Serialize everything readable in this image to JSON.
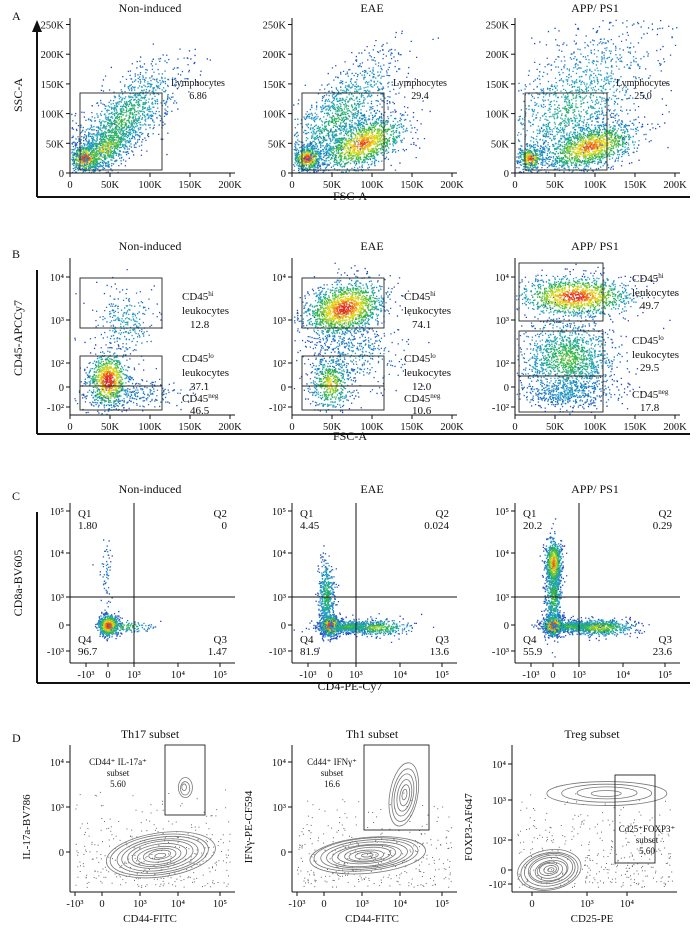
{
  "figure": {
    "panel_letters": [
      "A",
      "B",
      "C",
      "D"
    ],
    "conditions": [
      "Non-induced",
      "EAE",
      "APP/ PS1"
    ]
  },
  "colors": {
    "density_low": "#1f3fb0",
    "density_mid": "#22b14c",
    "density_high": "#f2e600",
    "density_peak": "#e8281e",
    "contour": "#777777",
    "gate": "#222222"
  },
  "chart_data": [
    {
      "panel": "A",
      "type": "scatter",
      "style": "density",
      "xlabel": "FSC-A",
      "ylabel": "SSC-A",
      "xticks": [
        "0",
        "50K",
        "100K",
        "150K",
        "200K"
      ],
      "yticks": [
        "0",
        "50K",
        "100K",
        "150K",
        "200K",
        "250K"
      ],
      "xlim": [
        0,
        230000
      ],
      "ylim": [
        0,
        262000
      ],
      "plots": [
        {
          "title": "Non-induced",
          "gates": [
            {
              "name": "Lymphocytes",
              "value": "6.86"
            }
          ]
        },
        {
          "title": "EAE",
          "gates": [
            {
              "name": "Lymphocytes",
              "value": "29.4"
            }
          ]
        },
        {
          "title": "APP/ PS1",
          "gates": [
            {
              "name": "Lymphocytes",
              "value": "25.0"
            }
          ]
        }
      ]
    },
    {
      "panel": "B",
      "type": "scatter",
      "style": "density",
      "xlabel": "FSC-A",
      "ylabel": "CD45-APCCy7",
      "xticks": [
        "0",
        "50K",
        "100K",
        "150K",
        "200K"
      ],
      "yticks": [
        "-10²",
        "0",
        "10²",
        "10³",
        "10⁴"
      ],
      "plots": [
        {
          "title": "Non-induced",
          "gates": [
            {
              "name": "CD45hi leukocytes",
              "value": "12.8"
            },
            {
              "name": "CD45lo leukocytes",
              "value": "37.1"
            },
            {
              "name": "CD45neg",
              "value": "46.5"
            }
          ]
        },
        {
          "title": "EAE",
          "gates": [
            {
              "name": "CD45hi leukocytes",
              "value": "74.1"
            },
            {
              "name": "CD45lo leukocytes",
              "value": "12.0"
            },
            {
              "name": "CD45neg",
              "value": "10.6"
            }
          ]
        },
        {
          "title": "APP/ PS1",
          "gates": [
            {
              "name": "CD45hi leukocytes",
              "value": "49.7"
            },
            {
              "name": "CD45lo leukocytes",
              "value": "29.5"
            },
            {
              "name": "CD45neg",
              "value": "17.8"
            }
          ]
        }
      ],
      "label_parts": {
        "base": "CD45",
        "hi": "hi",
        "lo": "lo",
        "neg": "neg",
        "word": "leukocytes"
      }
    },
    {
      "panel": "C",
      "type": "scatter",
      "style": "density-quadrant",
      "xlabel": "CD4-PE-Cy7",
      "ylabel": "CD8a-BV605",
      "xticks": [
        "-10³",
        "0",
        "10³",
        "10⁴",
        "10⁵"
      ],
      "yticks": [
        "-10³",
        "0",
        "10³",
        "10⁴",
        "10⁵"
      ],
      "quadrant_names": [
        "Q1",
        "Q2",
        "Q3",
        "Q4"
      ],
      "plots": [
        {
          "title": "Non-induced",
          "quadrants": {
            "Q1": "1.80",
            "Q2": "0",
            "Q3": "1.47",
            "Q4": "96.7"
          }
        },
        {
          "title": "EAE",
          "quadrants": {
            "Q1": "4.45",
            "Q2": "0.024",
            "Q3": "13.6",
            "Q4": "81.9"
          }
        },
        {
          "title": "APP/ PS1",
          "quadrants": {
            "Q1": "20.2",
            "Q2": "0.29",
            "Q3": "23.6",
            "Q4": "55.9"
          }
        }
      ]
    },
    {
      "panel": "D",
      "type": "scatter",
      "style": "contour",
      "plots": [
        {
          "title": "Th17 subset",
          "xlabel": "CD44-FITC",
          "ylabel": "IL-17a-BV786",
          "xticks": [
            "-10³",
            "0",
            "10³",
            "10⁴",
            "10⁵"
          ],
          "yticks": [
            "0",
            "10³",
            "10⁴"
          ],
          "gate": {
            "line1": "CD44⁺ IL-17a⁺",
            "line2": "subset",
            "value": "5.60"
          }
        },
        {
          "title": "Th1 subset",
          "xlabel": "CD44-FITC",
          "ylabel": "IFNγ-PE-CF594",
          "xticks": [
            "-10³",
            "0",
            "10³",
            "10⁴",
            "10⁵"
          ],
          "yticks": [
            "0",
            "10³",
            "10⁴"
          ],
          "gate": {
            "line1": "Cd44⁺ IFNγ⁺",
            "line2": "subset",
            "value": "16.6"
          }
        },
        {
          "title": "Treg subset",
          "xlabel": "CD25-PE",
          "ylabel": "FOXP3-AF647",
          "xticks": [
            "0",
            "10³",
            "10⁴"
          ],
          "yticks": [
            "-10²",
            "0",
            "10²",
            "10³",
            "10⁴"
          ],
          "gate": {
            "line1": "Cd25⁺FOXP3⁺",
            "line2": "subset",
            "value": "5.60"
          }
        }
      ]
    }
  ]
}
